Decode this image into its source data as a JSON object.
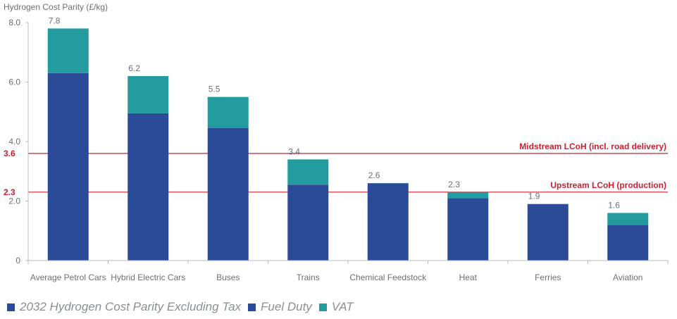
{
  "chart_data": {
    "type": "bar",
    "stacked": true,
    "y_axis_title": "Hydrogen Cost Parity (£/kg)",
    "ylim": [
      0,
      8
    ],
    "yticks": [
      "0",
      "2.0",
      "4.0",
      "6.0",
      "8.0"
    ],
    "ytick_values": [
      0,
      2,
      4,
      6,
      8
    ],
    "categories": [
      "Average Petrol Cars",
      "Hybrid Electric Cars",
      "Buses",
      "Trains",
      "Chemical Feedstock",
      "Heat",
      "Ferries",
      "Aviation"
    ],
    "series": [
      {
        "name": "2032 Hydrogen Cost Parity Excluding Tax",
        "color": "#2b4a97",
        "values": [
          0,
          0,
          0,
          0,
          2.6,
          0,
          1.9,
          0
        ]
      },
      {
        "name": "Fuel Duty",
        "color": "#2b4a97",
        "values": [
          6.3,
          4.95,
          4.45,
          2.55,
          0,
          2.1,
          0,
          1.2
        ]
      },
      {
        "name": "VAT",
        "color": "#229c9e",
        "values": [
          1.5,
          1.25,
          1.05,
          0.85,
          0,
          0.2,
          0,
          0.4
        ]
      }
    ],
    "totals": [
      "7.8",
      "6.2",
      "5.5",
      "3.4",
      "2.6",
      "2.3",
      "1.9",
      "1.6"
    ],
    "total_values": [
      7.8,
      6.2,
      5.5,
      3.4,
      2.6,
      2.3,
      1.9,
      1.6
    ],
    "reference_lines": [
      {
        "value": 3.6,
        "axis_label": "3.6",
        "label": "Midstream LCoH (incl. road delivery)",
        "color": "#cc1f2f"
      },
      {
        "value": 2.3,
        "axis_label": "2.3",
        "label": "Upstream LCoH (production)",
        "color": "#cc1f2f"
      }
    ],
    "legend_position": "bottom-left",
    "grid": false
  }
}
